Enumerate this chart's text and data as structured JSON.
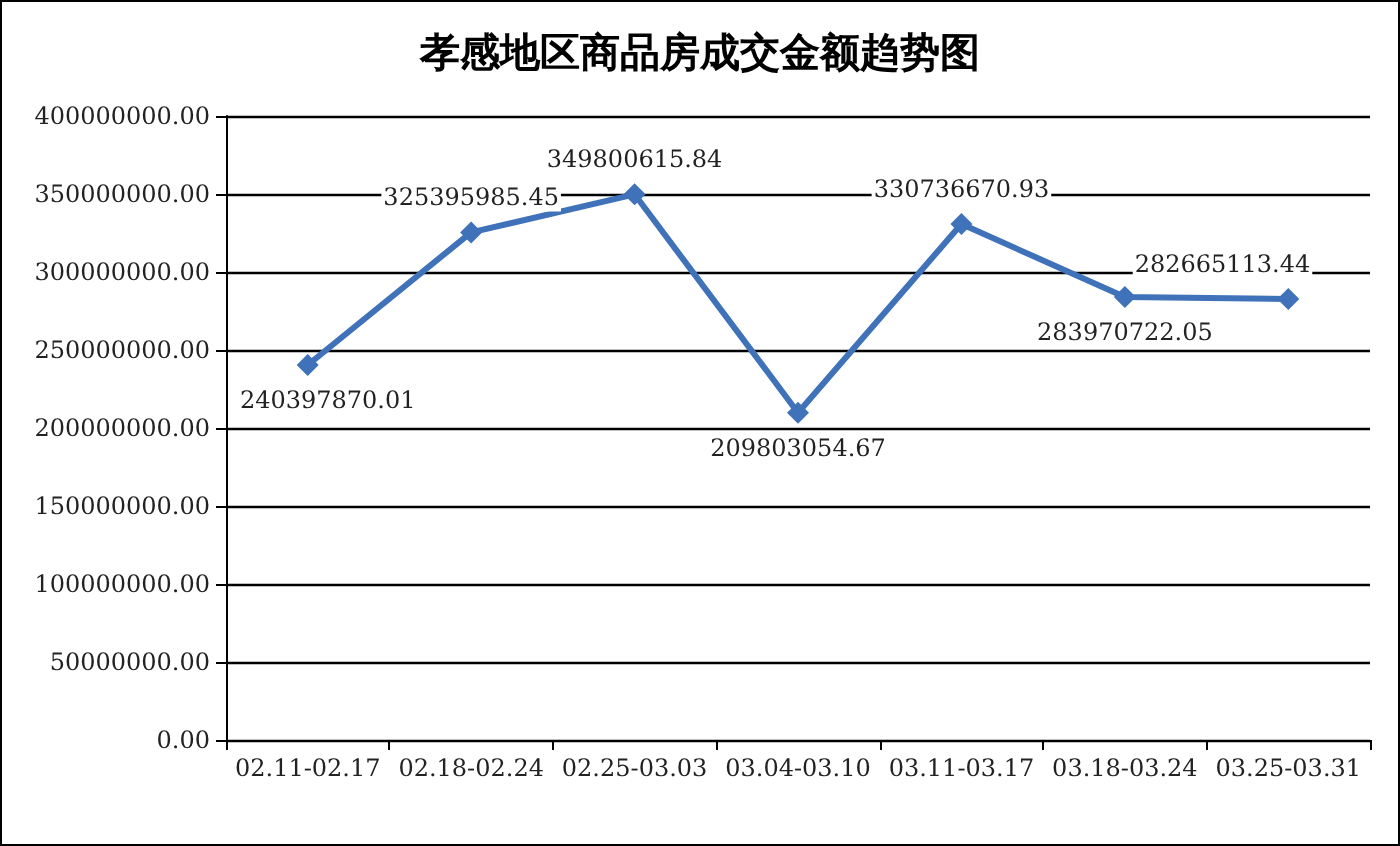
{
  "chart_data": {
    "type": "line",
    "title": "孝感地区商品房成交金额趋势图",
    "categories": [
      "02.11-02.17",
      "02.18-02.24",
      "02.25-03.03",
      "03.04-03.10",
      "03.11-03.17",
      "03.18-03.24",
      "03.25-03.31"
    ],
    "series": [
      {
        "color": "#3f72b8",
        "values": [
          240397870.01,
          325395985.45,
          349800615.84,
          209803054.67,
          330736670.93,
          283970722.05,
          282665113.44
        ]
      }
    ],
    "ylim": [
      0,
      400000000
    ],
    "yticks": [
      {
        "value": 0,
        "label": "0.00"
      },
      {
        "value": 50000000,
        "label": "50000000.00"
      },
      {
        "value": 100000000,
        "label": "100000000.00"
      },
      {
        "value": 150000000,
        "label": "150000000.00"
      },
      {
        "value": 200000000,
        "label": "200000000.00"
      },
      {
        "value": 250000000,
        "label": "250000000.00"
      },
      {
        "value": 300000000,
        "label": "300000000.00"
      },
      {
        "value": 350000000,
        "label": "350000000.00"
      },
      {
        "value": 400000000,
        "label": "400000000.00"
      }
    ],
    "grid": "y",
    "marker": "diamond",
    "line_style": "solid",
    "data_labels": true
  }
}
